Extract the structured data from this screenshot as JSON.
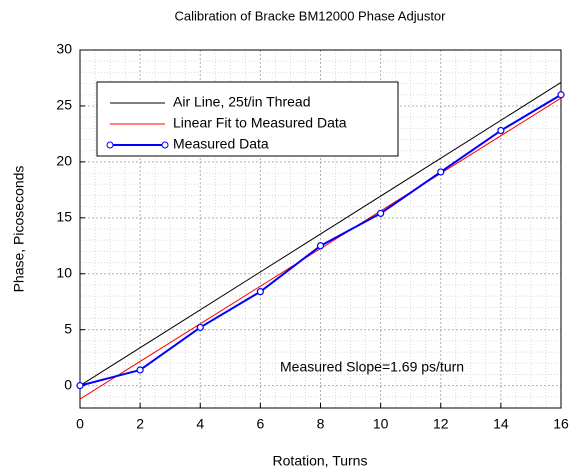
{
  "chart_data": {
    "type": "line",
    "title": "Calibration of Bracke BM12000 Phase Adjustor",
    "x_label": "Rotation, Turns",
    "y_label": "Phase, Picoseconds",
    "annotation": "Measured Slope=1.69 ps/turn",
    "xlim": [
      0,
      16
    ],
    "xticks": [
      0,
      2,
      4,
      6,
      8,
      10,
      12,
      14,
      16
    ],
    "ylim": [
      -2,
      30
    ],
    "yticks": [
      0,
      5,
      10,
      15,
      20,
      25,
      30
    ],
    "grid": true,
    "legend": "upper left",
    "series": [
      {
        "name": "Air Line, 25t/in Thread",
        "color": "#000000",
        "marker": false,
        "x": [
          0,
          16
        ],
        "values": [
          0,
          27.1
        ]
      },
      {
        "name": "Linear Fit to Measured Data",
        "color": "#ff0000",
        "marker": false,
        "x": [
          0,
          16
        ],
        "values": [
          -1.2,
          25.7
        ]
      },
      {
        "name": "Measured Data",
        "color": "#0000ff",
        "marker": true,
        "x": [
          0,
          2,
          4,
          6,
          8,
          10,
          12,
          14,
          16
        ],
        "values": [
          0,
          1.4,
          5.2,
          8.4,
          12.5,
          15.4,
          19.1,
          22.8,
          26.0
        ]
      }
    ]
  }
}
